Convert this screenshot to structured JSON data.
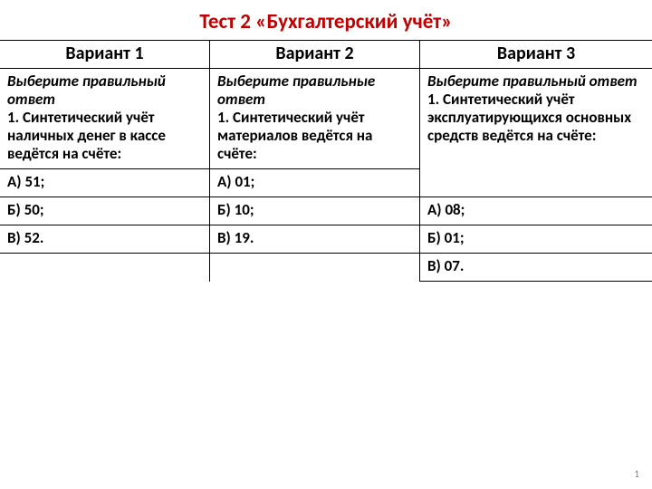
{
  "title_color": "#c00000",
  "title": "Тест 2 «Бухгалтерский учёт»",
  "headers": {
    "v1": "Вариант 1",
    "v2": "Вариант 2",
    "v3": "Вариант 3"
  },
  "prompt": {
    "v1": "Выберите правильный ответ",
    "v2": "Выберите правильные ответ",
    "v3": "Выберите правильный ответ"
  },
  "question": {
    "v1": "1. Синтетический учёт наличных денег в кассе ведётся на счёте:",
    "v2": "1. Синтетический учёт материалов ведётся на счёте:",
    "v3": "1. Синтетический учёт эксплуатирующихся основных средств ведётся на счёте:"
  },
  "options": {
    "v1": {
      "a": "А) 51;",
      "b": "Б) 50;",
      "c": "В) 52."
    },
    "v2": {
      "a": "А) 01;",
      "b": "Б) 10;",
      "c": "В) 19."
    },
    "v3": {
      "a": "А) 08;",
      "b": "Б) 01;",
      "c": "В) 07."
    }
  },
  "page_number": "1"
}
